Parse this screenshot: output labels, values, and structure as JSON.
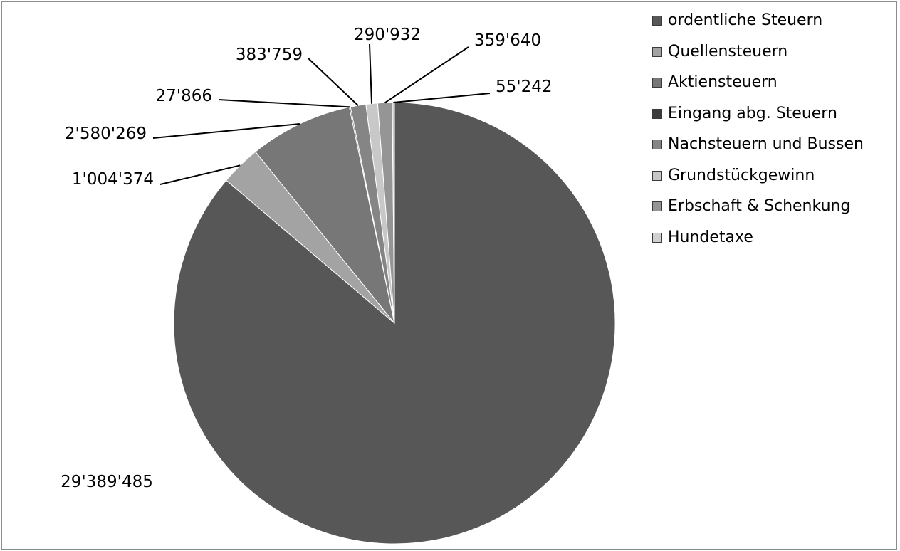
{
  "chart_data": {
    "type": "pie",
    "title": "",
    "legend_position": "right",
    "categories": [
      "ordentliche Steuern",
      "Quellensteuern",
      "Aktiensteuern",
      "Eingang abg. Steuern",
      "Nachsteuern und Bussen",
      "Grundstückgewinn",
      "Erbschaft & Schenkung",
      "Hundetaxe"
    ],
    "values": [
      29389485,
      1004374,
      2580269,
      27866,
      383759,
      290932,
      359640,
      55242
    ],
    "data_labels": [
      "29'389'485",
      "1'004'374",
      "2'580'269",
      "27'866",
      "383'759",
      "290'932",
      "359'640",
      "55'242"
    ],
    "colors": [
      "#575757",
      "#a3a3a3",
      "#777777",
      "#3d3d3d",
      "#858585",
      "#c8c8c8",
      "#959595",
      "#d0d0d0"
    ]
  }
}
